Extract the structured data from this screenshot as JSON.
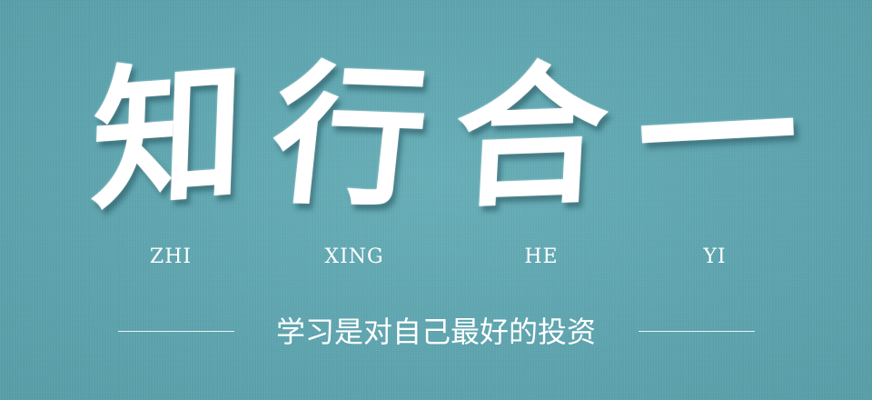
{
  "banner": {
    "characters": [
      "知",
      "行",
      "合",
      "一"
    ],
    "pinyin": [
      "ZHI",
      "XING",
      "HE",
      "YI"
    ],
    "slogan": "学习是对自己最好的投资"
  },
  "colors": {
    "background": "#5fa7b1",
    "text": "#ffffff"
  }
}
